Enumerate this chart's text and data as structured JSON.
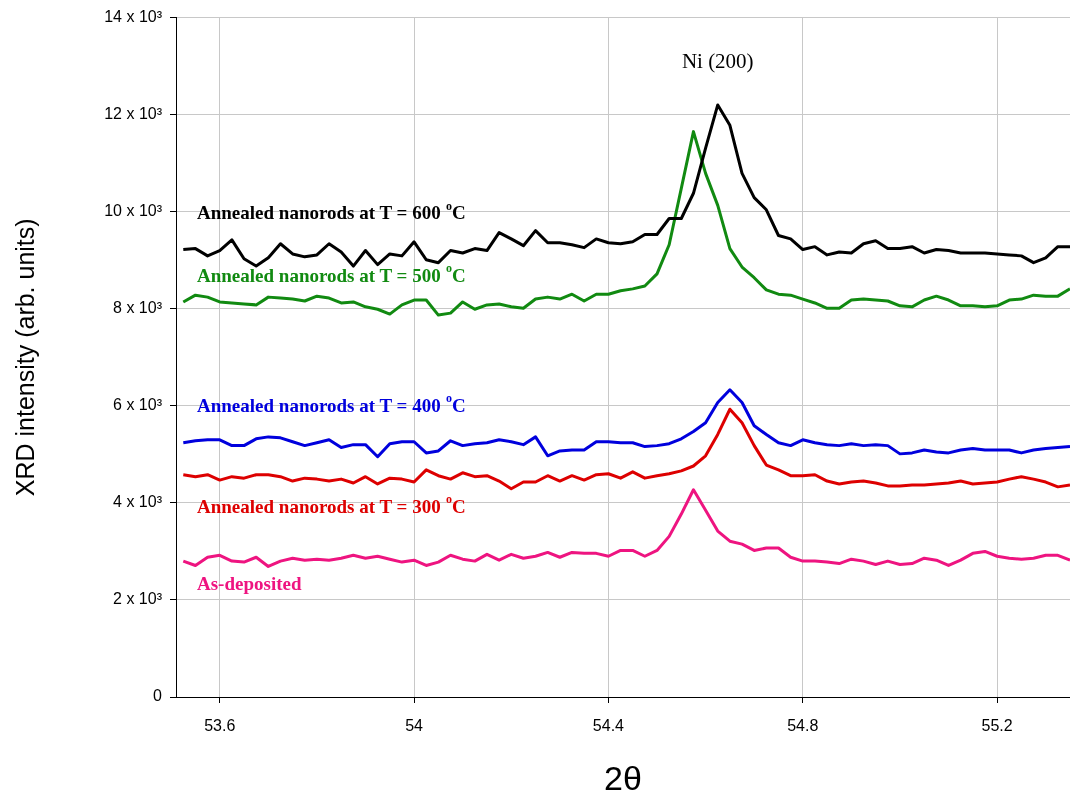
{
  "chart_data": {
    "type": "line",
    "xlabel": "2θ",
    "ylabel": "XRD intensity (arb. units)",
    "xlim": [
      53.51,
      55.35
    ],
    "ylim": [
      0,
      14000
    ],
    "xticks": [
      53.6,
      54,
      54.4,
      54.8,
      55.2
    ],
    "yticks": [
      0,
      {
        "value": 2000,
        "label": "2 x 10³"
      },
      {
        "value": 4000,
        "label": "4 x 10³"
      },
      {
        "value": 6000,
        "label": "6 x 10³"
      },
      {
        "value": 8000,
        "label": "8 x 10³"
      },
      {
        "value": 10000,
        "label": "10 x 10³"
      },
      {
        "value": 12000,
        "label": "12 x 10³"
      },
      {
        "value": 14000,
        "label": "14 x 10³"
      }
    ],
    "grid": true,
    "legend": false,
    "marker": "none",
    "line_style": "solid",
    "annotations": [
      "Ni (200)"
    ],
    "x": [
      53.525,
      53.55,
      53.575,
      53.6,
      53.625,
      53.65,
      53.675,
      53.7,
      53.725,
      53.75,
      53.775,
      53.8,
      53.825,
      53.85,
      53.875,
      53.9,
      53.925,
      53.95,
      53.975,
      54,
      54.025,
      54.05,
      54.075,
      54.1,
      54.125,
      54.15,
      54.175,
      54.2,
      54.225,
      54.25,
      54.275,
      54.3,
      54.325,
      54.35,
      54.375,
      54.4,
      54.425,
      54.45,
      54.475,
      54.5,
      54.525,
      54.55,
      54.575,
      54.6,
      54.625,
      54.65,
      54.675,
      54.7,
      54.725,
      54.75,
      54.775,
      54.8,
      54.825,
      54.85,
      54.875,
      54.9,
      54.925,
      54.95,
      54.975,
      55,
      55.025,
      55.05,
      55.075,
      55.1,
      55.125,
      55.15,
      55.175,
      55.2,
      55.225,
      55.25,
      55.275,
      55.3,
      55.325,
      55.35
    ],
    "series": [
      {
        "name": "Annealed nanorods at T = 600 $^{o}$C",
        "color": "#000000",
        "values": [
          9220,
          9240,
          9090,
          9200,
          9420,
          9030,
          8880,
          9050,
          9340,
          9130,
          9070,
          9110,
          9340,
          9170,
          8880,
          9200,
          8910,
          9130,
          9090,
          9380,
          9010,
          8950,
          9200,
          9150,
          9240,
          9200,
          9570,
          9440,
          9300,
          9610,
          9360,
          9360,
          9320,
          9260,
          9440,
          9360,
          9340,
          9380,
          9530,
          9530,
          9860,
          9860,
          10380,
          11310,
          12200,
          11780,
          10790,
          10290,
          10040,
          9510,
          9440,
          9220,
          9280,
          9110,
          9170,
          9150,
          9340,
          9400,
          9240,
          9240,
          9280,
          9150,
          9220,
          9200,
          9150,
          9150,
          9150,
          9130,
          9110,
          9090,
          8950,
          9050,
          9280,
          9280
        ]
      },
      {
        "name": "Annealed nanorods at T = 500 $^{o}$C",
        "color": "#118a11",
        "values": [
          8140,
          8280,
          8240,
          8140,
          8120,
          8100,
          8080,
          8240,
          8220,
          8200,
          8160,
          8260,
          8220,
          8120,
          8140,
          8040,
          7990,
          7890,
          8080,
          8180,
          8180,
          7870,
          7910,
          8140,
          7990,
          8080,
          8100,
          8040,
          8010,
          8200,
          8240,
          8200,
          8300,
          8160,
          8300,
          8300,
          8370,
          8410,
          8470,
          8720,
          9320,
          10480,
          11650,
          10790,
          10130,
          9240,
          8860,
          8640,
          8390,
          8300,
          8280,
          8200,
          8120,
          8010,
          8010,
          8180,
          8200,
          8180,
          8160,
          8060,
          8040,
          8180,
          8260,
          8180,
          8060,
          8060,
          8040,
          8060,
          8180,
          8200,
          8280,
          8260,
          8260,
          8410
        ]
      },
      {
        "name": "Annealed nanorods at T = 400 $^{o}$C",
        "color": "#0000dd",
        "values": [
          5240,
          5280,
          5300,
          5300,
          5180,
          5180,
          5320,
          5360,
          5340,
          5260,
          5180,
          5240,
          5300,
          5140,
          5200,
          5200,
          4950,
          5220,
          5260,
          5260,
          5030,
          5070,
          5280,
          5180,
          5220,
          5240,
          5300,
          5260,
          5200,
          5360,
          4970,
          5070,
          5090,
          5090,
          5260,
          5260,
          5240,
          5240,
          5160,
          5180,
          5220,
          5320,
          5470,
          5650,
          6070,
          6330,
          6070,
          5590,
          5410,
          5240,
          5180,
          5300,
          5240,
          5200,
          5180,
          5220,
          5180,
          5200,
          5180,
          5010,
          5030,
          5090,
          5050,
          5030,
          5090,
          5120,
          5090,
          5090,
          5090,
          5030,
          5090,
          5120,
          5140,
          5160
        ]
      },
      {
        "name": "Annealed nanorods at T = 300 $^{o}$C",
        "color": "#dd0000",
        "values": [
          4580,
          4540,
          4580,
          4470,
          4540,
          4510,
          4580,
          4580,
          4540,
          4450,
          4510,
          4490,
          4450,
          4490,
          4410,
          4540,
          4390,
          4510,
          4490,
          4430,
          4680,
          4560,
          4490,
          4620,
          4540,
          4560,
          4450,
          4290,
          4430,
          4430,
          4560,
          4450,
          4560,
          4470,
          4580,
          4600,
          4510,
          4640,
          4510,
          4560,
          4600,
          4660,
          4760,
          4970,
          5410,
          5930,
          5650,
          5180,
          4780,
          4680,
          4560,
          4560,
          4580,
          4450,
          4390,
          4430,
          4450,
          4410,
          4350,
          4350,
          4370,
          4370,
          4390,
          4410,
          4450,
          4390,
          4410,
          4430,
          4490,
          4540,
          4490,
          4430,
          4330,
          4370
        ]
      },
      {
        "name": "As-deposited",
        "color": "#ee1480",
        "values": [
          2800,
          2710,
          2880,
          2920,
          2800,
          2780,
          2880,
          2690,
          2800,
          2860,
          2820,
          2840,
          2820,
          2860,
          2920,
          2860,
          2900,
          2840,
          2780,
          2820,
          2710,
          2780,
          2920,
          2840,
          2800,
          2940,
          2820,
          2940,
          2860,
          2900,
          2980,
          2880,
          2980,
          2960,
          2960,
          2900,
          3020,
          3020,
          2900,
          3020,
          3310,
          3770,
          4270,
          3850,
          3420,
          3210,
          3150,
          3020,
          3070,
          3070,
          2880,
          2800,
          2800,
          2780,
          2750,
          2840,
          2800,
          2730,
          2800,
          2730,
          2750,
          2860,
          2820,
          2710,
          2820,
          2960,
          3000,
          2900,
          2860,
          2840,
          2860,
          2920,
          2920,
          2820
        ]
      }
    ]
  }
}
